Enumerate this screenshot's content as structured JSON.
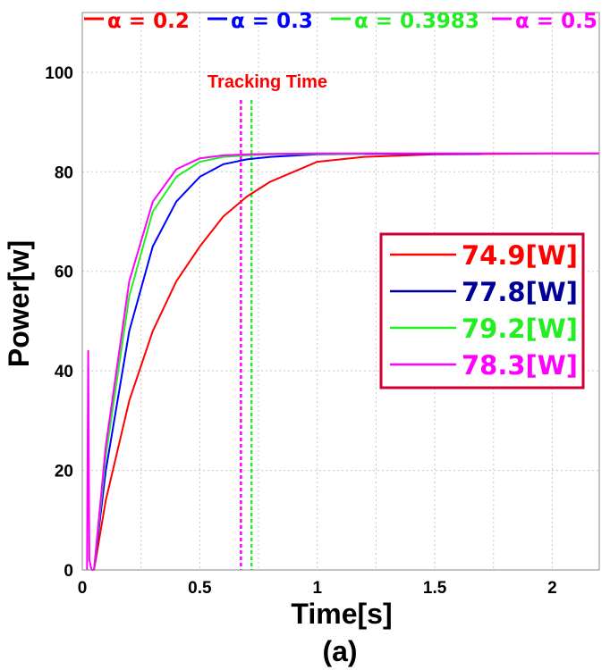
{
  "chart_data": {
    "type": "line",
    "xlabel": "Time[s]",
    "ylabel": "Power[w]",
    "caption": "(a)",
    "xlim": [
      0,
      2.2
    ],
    "ylim": [
      0,
      112
    ],
    "x_ticks": [
      {
        "value": 0,
        "label": "0"
      },
      {
        "value": 0.5,
        "label": "0.5"
      },
      {
        "value": 1,
        "label": "1"
      },
      {
        "value": 1.5,
        "label": "1.5"
      },
      {
        "value": 2,
        "label": "2"
      }
    ],
    "y_ticks": [
      {
        "value": 0,
        "label": "0"
      },
      {
        "value": 20,
        "label": "20"
      },
      {
        "value": 40,
        "label": "40"
      },
      {
        "value": 60,
        "label": "60"
      },
      {
        "value": 80,
        "label": "80"
      },
      {
        "value": 100,
        "label": "100"
      }
    ],
    "grid": true,
    "legend_top": [
      {
        "label": "α = 0.2",
        "color": "#ff0000"
      },
      {
        "label": "α = 0.3",
        "color": "#0000ff"
      },
      {
        "label": "α = 0.3983",
        "color": "#22ee22"
      },
      {
        "label": "α = 0.5",
        "color": "#ff00ff"
      }
    ],
    "legend_box": [
      {
        "label": "74.9[W]",
        "color": "#ff0000"
      },
      {
        "label": "77.8[W]",
        "color": "#000099"
      },
      {
        "label": "79.2[W]",
        "color": "#22ee22"
      },
      {
        "label": "78.3[W]",
        "color": "#ff00ff"
      }
    ],
    "annotation": {
      "text": "Tracking Time",
      "color": "#ff0000"
    },
    "vlines": [
      {
        "x": 0.675,
        "color": "#ff00ff"
      },
      {
        "x": 0.72,
        "color": "#22ee22"
      }
    ],
    "series": [
      {
        "color": "#ff0000",
        "x": [
          0.05,
          0.1,
          0.2,
          0.3,
          0.4,
          0.5,
          0.6,
          0.7,
          0.8,
          1.0,
          1.2,
          1.5,
          2.0,
          2.2
        ],
        "y": [
          0,
          14,
          34,
          48,
          58,
          65,
          71,
          75,
          78,
          82,
          83,
          83.5,
          83.7,
          83.7
        ]
      },
      {
        "color": "#0000ff",
        "x": [
          0.05,
          0.1,
          0.2,
          0.3,
          0.4,
          0.5,
          0.6,
          0.7,
          0.8,
          1.0,
          1.2,
          1.5,
          1.7
        ],
        "y": [
          0,
          20,
          48,
          65,
          74,
          79,
          81.5,
          82.5,
          83,
          83.5,
          83.6,
          83.6,
          83.6
        ]
      },
      {
        "color": "#22ee22",
        "x": [
          0.05,
          0.1,
          0.2,
          0.3,
          0.4,
          0.5,
          0.6,
          0.7,
          0.8,
          1.0,
          1.2
        ],
        "y": [
          0,
          23,
          55,
          72,
          79,
          82,
          83,
          83.3,
          83.5,
          83.6,
          83.6
        ]
      },
      {
        "color": "#ff00ff",
        "x": [
          0.02,
          0.025,
          0.03,
          0.04,
          0.05,
          0.1,
          0.2,
          0.3,
          0.4,
          0.5,
          0.6,
          0.7,
          0.8,
          1.0,
          2.2
        ],
        "y": [
          0,
          44,
          2,
          0,
          0,
          25,
          58,
          74,
          80.5,
          82.7,
          83.3,
          83.5,
          83.6,
          83.7,
          83.7
        ]
      }
    ]
  }
}
